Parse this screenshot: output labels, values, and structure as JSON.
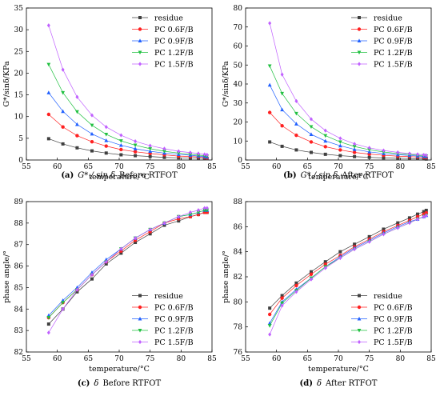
{
  "series_colors": [
    "#404040",
    "#ff2020",
    "#2060ff",
    "#20c040",
    "#c060ff"
  ],
  "chart_data": [
    {
      "type": "line",
      "panel_label": "(a)",
      "caption_math": "G* / sin δ",
      "caption_text": "Before RTFOT",
      "xlabel": "temperature/°C",
      "ylabel": "G*/sinδ/KPa",
      "xlim": [
        55,
        85
      ],
      "ylim": [
        0,
        35
      ],
      "xticks": [
        55,
        60,
        65,
        70,
        75,
        80,
        85
      ],
      "yticks": [
        0,
        5,
        10,
        15,
        20,
        25,
        30,
        35
      ],
      "legend_position": "top-right",
      "x": [
        58.6,
        60.9,
        63.2,
        65.6,
        67.9,
        70.3,
        72.6,
        75.0,
        77.3,
        79.6,
        81.5,
        82.8,
        83.8,
        84.2
      ],
      "series": [
        {
          "name": "residue",
          "values": [
            4.9,
            3.7,
            2.8,
            2.1,
            1.6,
            1.2,
            1.0,
            0.8,
            0.6,
            0.5,
            0.45,
            0.4,
            0.35,
            0.3
          ]
        },
        {
          "name": "PC 0.6F/B",
          "values": [
            10.5,
            7.6,
            5.6,
            4.2,
            3.2,
            2.4,
            1.9,
            1.5,
            1.2,
            0.9,
            0.8,
            0.7,
            0.6,
            0.5
          ]
        },
        {
          "name": "PC 0.9F/B",
          "values": [
            15.5,
            11.2,
            8.2,
            6.0,
            4.5,
            3.4,
            2.6,
            2.0,
            1.6,
            1.3,
            1.1,
            0.9,
            0.8,
            0.7
          ]
        },
        {
          "name": "PC 1.2F/B",
          "values": [
            22.0,
            15.5,
            11.1,
            8.0,
            5.9,
            4.4,
            3.4,
            2.6,
            2.0,
            1.6,
            1.3,
            1.1,
            1.0,
            0.9
          ]
        },
        {
          "name": "PC 1.5F/B",
          "values": [
            31.0,
            20.8,
            14.5,
            10.3,
            7.6,
            5.7,
            4.3,
            3.3,
            2.6,
            2.0,
            1.7,
            1.5,
            1.3,
            1.2
          ]
        }
      ]
    },
    {
      "type": "line",
      "panel_label": "(b)",
      "caption_math": "G* / sin δ",
      "caption_text": "After RTFOT",
      "xlabel": "temperature/°C",
      "ylabel": "G*/sinδ/KPa",
      "xlim": [
        55,
        85
      ],
      "ylim": [
        0,
        80
      ],
      "xticks": [
        55,
        60,
        65,
        70,
        75,
        80,
        85
      ],
      "yticks": [
        0,
        10,
        20,
        30,
        40,
        50,
        60,
        70,
        80
      ],
      "legend_position": "top-right",
      "x": [
        58.9,
        60.9,
        63.2,
        65.6,
        67.9,
        70.3,
        72.6,
        75.0,
        77.3,
        79.6,
        81.5,
        82.8,
        83.8,
        84.2
      ],
      "series": [
        {
          "name": "residue",
          "values": [
            9.5,
            7.2,
            5.3,
            4.0,
            3.0,
            2.3,
            1.8,
            1.4,
            1.1,
            0.9,
            0.8,
            0.7,
            0.6,
            0.5
          ]
        },
        {
          "name": "PC 0.6F/B",
          "values": [
            25.0,
            18.0,
            13.0,
            9.5,
            7.0,
            5.3,
            4.0,
            3.1,
            2.5,
            2.0,
            1.8,
            1.6,
            1.4,
            1.3
          ]
        },
        {
          "name": "PC 0.9F/B",
          "values": [
            39.5,
            26.5,
            19.0,
            13.5,
            10.0,
            7.5,
            5.6,
            4.3,
            3.4,
            2.8,
            2.4,
            2.1,
            1.9,
            1.8
          ]
        },
        {
          "name": "PC 1.2F/B",
          "values": [
            49.5,
            35.0,
            24.5,
            17.5,
            12.8,
            9.5,
            7.1,
            5.4,
            4.2,
            3.4,
            2.9,
            2.5,
            2.3,
            2.1
          ]
        },
        {
          "name": "PC 1.5F/B",
          "values": [
            72.0,
            45.0,
            31.0,
            21.5,
            15.5,
            11.4,
            8.5,
            6.4,
            5.0,
            4.0,
            3.4,
            3.0,
            2.7,
            2.5
          ]
        }
      ]
    },
    {
      "type": "line",
      "panel_label": "(c)",
      "caption_math": "δ",
      "caption_text": "Before RTFOT",
      "xlabel": "temperature/°C",
      "ylabel": "phase angle/°",
      "xlim": [
        55,
        85
      ],
      "ylim": [
        82,
        89
      ],
      "xticks": [
        55,
        60,
        65,
        70,
        75,
        80,
        85
      ],
      "yticks": [
        82,
        83,
        84,
        85,
        86,
        87,
        88,
        89
      ],
      "legend_position": "bottom-right",
      "x": [
        58.6,
        60.9,
        63.2,
        65.6,
        67.9,
        70.3,
        72.6,
        75.0,
        77.3,
        79.6,
        81.5,
        82.8,
        83.8,
        84.2
      ],
      "series": [
        {
          "name": "residue",
          "values": [
            83.3,
            84.0,
            84.8,
            85.4,
            86.1,
            86.6,
            87.1,
            87.5,
            87.9,
            88.1,
            88.3,
            88.4,
            88.5,
            88.5
          ]
        },
        {
          "name": "PC 0.6F/B",
          "values": [
            83.6,
            84.3,
            84.9,
            85.6,
            86.2,
            86.7,
            87.2,
            87.6,
            88.0,
            88.2,
            88.3,
            88.4,
            88.5,
            88.5
          ]
        },
        {
          "name": "PC 0.9F/B",
          "values": [
            83.7,
            84.4,
            85.0,
            85.7,
            86.3,
            86.8,
            87.3,
            87.7,
            88.0,
            88.3,
            88.4,
            88.5,
            88.6,
            88.6
          ]
        },
        {
          "name": "PC 1.2F/B",
          "values": [
            83.6,
            84.3,
            84.9,
            85.6,
            86.2,
            86.8,
            87.3,
            87.7,
            88.0,
            88.3,
            88.4,
            88.5,
            88.6,
            88.6
          ]
        },
        {
          "name": "PC 1.5F/B",
          "values": [
            82.9,
            84.0,
            84.9,
            85.6,
            86.2,
            86.8,
            87.3,
            87.7,
            88.0,
            88.3,
            88.5,
            88.6,
            88.7,
            88.7
          ]
        }
      ]
    },
    {
      "type": "line",
      "panel_label": "(d)",
      "caption_math": "δ",
      "caption_text": "After RTFOT",
      "xlabel": "temperature/°C",
      "ylabel": "phase angle/°",
      "xlim": [
        55,
        85
      ],
      "ylim": [
        76,
        88
      ],
      "xticks": [
        55,
        60,
        65,
        70,
        75,
        80,
        85
      ],
      "yticks": [
        76,
        78,
        80,
        82,
        84,
        86,
        88
      ],
      "legend_position": "bottom-right",
      "x": [
        58.9,
        60.9,
        63.2,
        65.6,
        67.9,
        70.3,
        72.6,
        75.0,
        77.3,
        79.6,
        81.5,
        82.8,
        83.8,
        84.2
      ],
      "series": [
        {
          "name": "residue",
          "values": [
            79.5,
            80.5,
            81.5,
            82.4,
            83.2,
            84.0,
            84.6,
            85.2,
            85.8,
            86.3,
            86.7,
            87.0,
            87.2,
            87.3
          ]
        },
        {
          "name": "PC 0.6F/B",
          "values": [
            79.0,
            80.3,
            81.3,
            82.2,
            83.0,
            83.7,
            84.4,
            85.0,
            85.6,
            86.1,
            86.5,
            86.8,
            87.0,
            87.1
          ]
        },
        {
          "name": "PC 0.9F/B",
          "values": [
            78.3,
            80.0,
            81.0,
            81.9,
            82.8,
            83.6,
            84.3,
            84.9,
            85.5,
            86.0,
            86.4,
            86.6,
            86.8,
            86.9
          ]
        },
        {
          "name": "PC 1.2F/B",
          "values": [
            78.1,
            79.9,
            80.9,
            81.9,
            82.8,
            83.5,
            84.2,
            84.8,
            85.4,
            85.9,
            86.3,
            86.6,
            86.8,
            86.9
          ]
        },
        {
          "name": "PC 1.5F/B",
          "values": [
            77.4,
            79.7,
            80.8,
            81.8,
            82.7,
            83.5,
            84.2,
            84.8,
            85.4,
            85.9,
            86.3,
            86.6,
            86.8,
            86.9
          ]
        }
      ]
    }
  ]
}
